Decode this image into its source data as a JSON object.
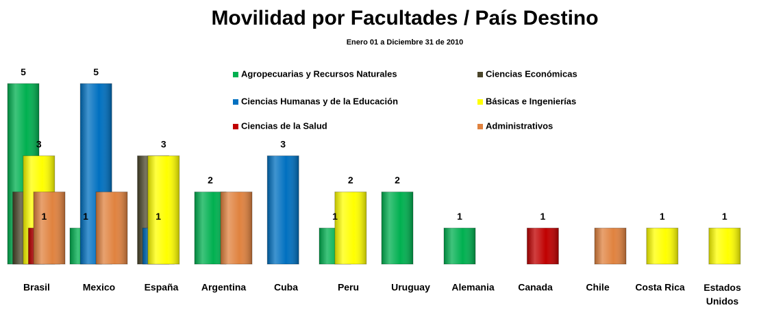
{
  "chart_data": {
    "type": "bar",
    "title": "Movilidad por Facultades / País Destino",
    "subtitle": "Enero 01 a Diciembre 31 de 2010",
    "categories": [
      "Brasil",
      "Mexico",
      "España",
      "Argentina",
      "Cuba",
      "Peru",
      "Uruguay",
      "Alemania",
      "Canada",
      "Chile",
      "Costa Rica",
      "Estados Unidos"
    ],
    "ylim": [
      0,
      5.4
    ],
    "legend": "top-right",
    "series": [
      {
        "name": "Agropecuarias y Recursos Naturales",
        "color": "#00b050",
        "values": [
          5,
          1,
          null,
          2,
          null,
          1,
          2,
          1,
          null,
          null,
          null,
          null
        ],
        "value_labels": [
          "5",
          "1",
          null,
          "2",
          null,
          "1",
          "2",
          "1",
          null,
          null,
          null,
          null
        ]
      },
      {
        "name": "Ciencias Económicas",
        "color": "#4a452a",
        "values": [
          2,
          null,
          3,
          null,
          null,
          null,
          null,
          null,
          null,
          null,
          null,
          null
        ]
      },
      {
        "name": "Ciencias Humanas y de la Educación",
        "color": "#0070c0",
        "values": [
          null,
          5,
          1,
          null,
          3,
          null,
          null,
          null,
          null,
          null,
          null,
          null
        ],
        "value_labels": [
          null,
          "5",
          "1",
          null,
          "3",
          null,
          null,
          null,
          null,
          null,
          null,
          null
        ]
      },
      {
        "name": "Básicas e Ingenierías",
        "color": "#ffff00",
        "values": [
          3,
          null,
          3,
          null,
          null,
          2,
          null,
          null,
          null,
          null,
          1,
          1
        ],
        "value_labels": [
          "3",
          null,
          "3",
          null,
          null,
          "2",
          null,
          null,
          null,
          null,
          "1",
          "1"
        ]
      },
      {
        "name": "Ciencias de la Salud",
        "color": "#c00000",
        "values": [
          1,
          null,
          null,
          null,
          null,
          null,
          null,
          null,
          1,
          null,
          null,
          null
        ],
        "value_labels": [
          "1",
          null,
          null,
          null,
          null,
          null,
          null,
          null,
          "1",
          null,
          null,
          null
        ]
      },
      {
        "name": "Administrativos",
        "color": "#e0823f",
        "values": [
          2,
          2,
          null,
          2,
          null,
          null,
          null,
          null,
          null,
          1,
          null,
          null
        ]
      }
    ]
  }
}
